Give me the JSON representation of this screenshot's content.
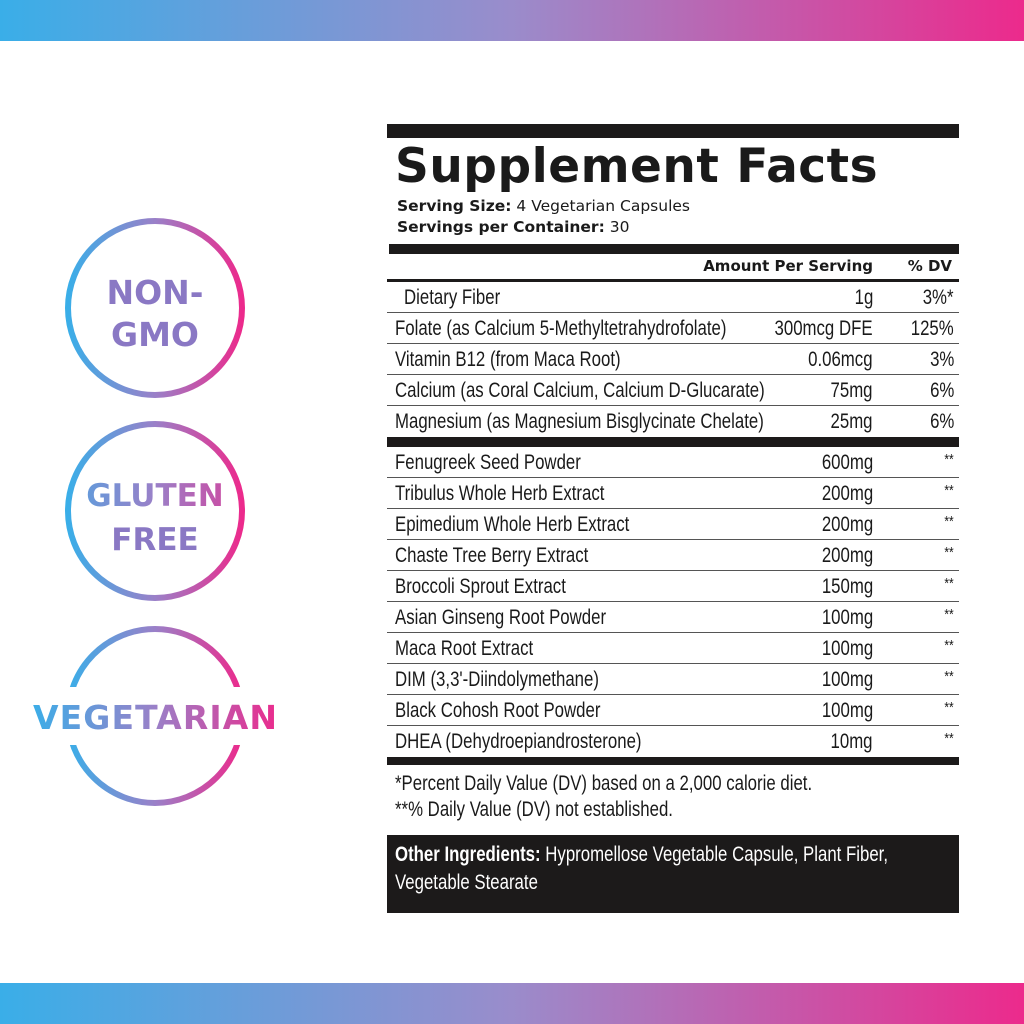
{
  "colors": {
    "gradient_start": "#3aaee8",
    "gradient_end": "#ec2a8c",
    "panel_ink": "#1c1a1a"
  },
  "badges": [
    {
      "line1": "NON-",
      "line2": "GMO"
    },
    {
      "line1": "GLUTEN",
      "line2": "FREE"
    },
    {
      "line1": "VEGETARIAN"
    }
  ],
  "facts": {
    "title": "Supplement Facts",
    "serving_size_label": "Serving Size:",
    "serving_size": "4 Vegetarian Capsules",
    "servings_label": "Servings per Container:",
    "servings": "30",
    "col_amount": "Amount Per Serving",
    "col_dv": "% DV",
    "group1": [
      {
        "name": "Dietary Fiber",
        "amount": "1g",
        "dv": "3%*"
      },
      {
        "name": "Folate (as Calcium 5-Methyltetrahydrofolate)",
        "amount": "300mcg DFE",
        "dv": "125%"
      },
      {
        "name": "Vitamin B12 (from Maca Root)",
        "amount": "0.06mcg",
        "dv": "3%"
      },
      {
        "name": "Calcium (as Coral Calcium, Calcium D-Glucarate)",
        "amount": "75mg",
        "dv": "6%"
      },
      {
        "name": "Magnesium (as Magnesium Bisglycinate Chelate)",
        "amount": "25mg",
        "dv": "6%"
      }
    ],
    "group2": [
      {
        "name": "Fenugreek Seed Powder",
        "amount": "600mg",
        "dv": "**"
      },
      {
        "name": "Tribulus Whole Herb Extract",
        "amount": "200mg",
        "dv": "**"
      },
      {
        "name": "Epimedium Whole Herb Extract",
        "amount": "200mg",
        "dv": "**"
      },
      {
        "name": "Chaste Tree Berry Extract",
        "amount": "200mg",
        "dv": "**"
      },
      {
        "name": "Broccoli Sprout Extract",
        "amount": "150mg",
        "dv": "**"
      },
      {
        "name": "Asian Ginseng Root Powder",
        "amount": "100mg",
        "dv": "**"
      },
      {
        "name": "Maca Root Extract",
        "amount": "100mg",
        "dv": "**"
      },
      {
        "name": "DIM (3,3'-Diindolymethane)",
        "amount": "100mg",
        "dv": "**"
      },
      {
        "name": "Black Cohosh Root Powder",
        "amount": "100mg",
        "dv": "**"
      },
      {
        "name": "DHEA (Dehydroepiandrosterone)",
        "amount": "10mg",
        "dv": "**"
      }
    ],
    "footnote1": "*Percent Daily Value (DV) based on a 2,000 calorie diet.",
    "footnote2": "**% Daily Value (DV) not established.",
    "other_label": "Other Ingredients:",
    "other_line1": " Hypromellose Vegetable Capsule, Plant Fiber,",
    "other_line2": "Vegetable Stearate"
  }
}
